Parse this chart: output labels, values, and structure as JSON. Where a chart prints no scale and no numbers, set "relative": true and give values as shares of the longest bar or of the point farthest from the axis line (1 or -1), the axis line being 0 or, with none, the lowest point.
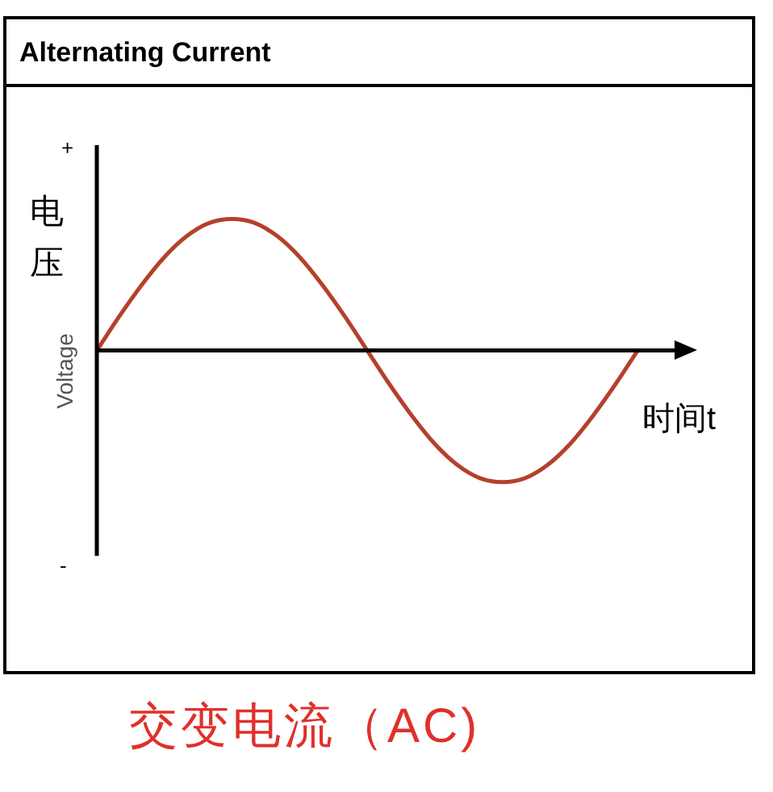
{
  "chart_data": {
    "type": "line",
    "title": "Alternating Current",
    "ylabel": "Voltage",
    "xlabel": "时间t",
    "relative": true,
    "categories": [
      null,
      null,
      null,
      null,
      null,
      null,
      null,
      null,
      null,
      null,
      null,
      null,
      null,
      null,
      null,
      null,
      null,
      null,
      null,
      null,
      null,
      null,
      null,
      null,
      null
    ],
    "series": [
      {
        "color": "#b5402c",
        "values": [
          0,
          0.26,
          0.5,
          0.71,
          0.87,
          0.97,
          1,
          0.97,
          0.87,
          0.71,
          0.5,
          0.26,
          0,
          -0.26,
          -0.5,
          -0.71,
          -0.87,
          -0.97,
          -1,
          -0.97,
          -0.87,
          -0.71,
          -0.5,
          -0.26,
          0
        ]
      }
    ],
    "marker": "none",
    "line_style": "solid",
    "grid": false,
    "legend": false,
    "annotations": [
      "电压",
      "+",
      "-",
      "交变电流（AC)"
    ]
  }
}
